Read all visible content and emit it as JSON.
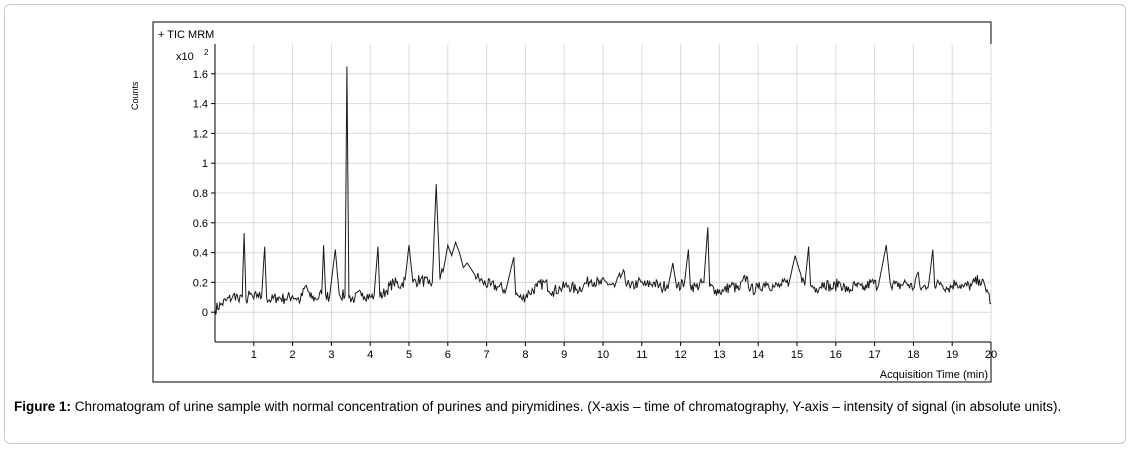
{
  "chart_data": {
    "type": "line",
    "title": "+ TIC MRM",
    "y_multiplier": "x10",
    "y_exponent": "2",
    "ylabel": "Counts",
    "xlabel": "Acquisition Time (min)",
    "xlim": [
      0,
      20
    ],
    "ylim": [
      -0.2,
      1.8
    ],
    "x_ticks": [
      1,
      2,
      3,
      4,
      5,
      6,
      7,
      8,
      9,
      10,
      11,
      12,
      13,
      14,
      15,
      16,
      17,
      18,
      19,
      20
    ],
    "x_tick_labels": [
      "1",
      "2",
      "3",
      "4",
      "5",
      "6",
      "7",
      "8",
      "9",
      "10",
      "11",
      "12",
      "13",
      "14",
      "15",
      "16",
      "17",
      "18",
      "19",
      "20"
    ],
    "y_ticks": [
      0,
      0.2,
      0.4,
      0.6,
      0.8,
      1,
      1.2,
      1.4,
      1.6
    ],
    "y_tick_labels": [
      "0",
      "0.2",
      "0.4",
      "0.6",
      "0.8",
      "1",
      "1.2",
      "1.4",
      "1.6"
    ],
    "grid": true,
    "series": [
      {
        "points": [
          [
            0.0,
            0.02
          ],
          [
            0.15,
            0.05
          ],
          [
            0.3,
            0.08
          ],
          [
            0.45,
            0.1
          ],
          [
            0.55,
            0.12
          ],
          [
            0.62,
            0.07
          ],
          [
            0.7,
            0.1
          ],
          [
            0.75,
            0.53
          ],
          [
            0.8,
            0.08
          ],
          [
            0.9,
            0.12
          ],
          [
            1.0,
            0.09
          ],
          [
            1.1,
            0.12
          ],
          [
            1.2,
            0.1
          ],
          [
            1.28,
            0.44
          ],
          [
            1.33,
            0.1
          ],
          [
            1.45,
            0.08
          ],
          [
            1.6,
            0.1
          ],
          [
            1.8,
            0.09
          ],
          [
            2.0,
            0.11
          ],
          [
            2.2,
            0.08
          ],
          [
            2.35,
            0.18
          ],
          [
            2.45,
            0.1
          ],
          [
            2.6,
            0.09
          ],
          [
            2.75,
            0.12
          ],
          [
            2.8,
            0.45
          ],
          [
            2.85,
            0.12
          ],
          [
            2.95,
            0.1
          ],
          [
            3.1,
            0.42
          ],
          [
            3.2,
            0.12
          ],
          [
            3.35,
            0.11
          ],
          [
            3.4,
            1.65
          ],
          [
            3.45,
            0.1
          ],
          [
            3.6,
            0.09
          ],
          [
            3.8,
            0.13
          ],
          [
            4.0,
            0.1
          ],
          [
            4.1,
            0.11
          ],
          [
            4.2,
            0.44
          ],
          [
            4.25,
            0.1
          ],
          [
            4.4,
            0.14
          ],
          [
            4.6,
            0.2
          ],
          [
            4.8,
            0.18
          ],
          [
            4.9,
            0.22
          ],
          [
            5.0,
            0.45
          ],
          [
            5.1,
            0.2
          ],
          [
            5.3,
            0.22
          ],
          [
            5.5,
            0.19
          ],
          [
            5.6,
            0.2
          ],
          [
            5.7,
            0.86
          ],
          [
            5.8,
            0.22
          ],
          [
            5.9,
            0.3
          ],
          [
            6.0,
            0.45
          ],
          [
            6.1,
            0.38
          ],
          [
            6.2,
            0.47
          ],
          [
            6.3,
            0.4
          ],
          [
            6.4,
            0.3
          ],
          [
            6.5,
            0.33
          ],
          [
            6.7,
            0.25
          ],
          [
            6.9,
            0.2
          ],
          [
            7.1,
            0.18
          ],
          [
            7.3,
            0.17
          ],
          [
            7.5,
            0.15
          ],
          [
            7.7,
            0.37
          ],
          [
            7.75,
            0.12
          ],
          [
            7.9,
            0.09
          ],
          [
            8.1,
            0.13
          ],
          [
            8.3,
            0.17
          ],
          [
            8.5,
            0.2
          ],
          [
            8.7,
            0.14
          ],
          [
            8.9,
            0.16
          ],
          [
            9.1,
            0.18
          ],
          [
            9.3,
            0.15
          ],
          [
            9.5,
            0.18
          ],
          [
            9.7,
            0.22
          ],
          [
            9.9,
            0.19
          ],
          [
            10.1,
            0.2
          ],
          [
            10.3,
            0.17
          ],
          [
            10.5,
            0.26
          ],
          [
            10.7,
            0.16
          ],
          [
            10.9,
            0.2
          ],
          [
            11.1,
            0.18
          ],
          [
            11.3,
            0.2
          ],
          [
            11.5,
            0.16
          ],
          [
            11.7,
            0.2
          ],
          [
            11.8,
            0.33
          ],
          [
            11.9,
            0.16
          ],
          [
            12.1,
            0.2
          ],
          [
            12.2,
            0.42
          ],
          [
            12.25,
            0.18
          ],
          [
            12.4,
            0.17
          ],
          [
            12.6,
            0.2
          ],
          [
            12.7,
            0.57
          ],
          [
            12.75,
            0.17
          ],
          [
            12.9,
            0.15
          ],
          [
            13.1,
            0.14
          ],
          [
            13.3,
            0.18
          ],
          [
            13.5,
            0.15
          ],
          [
            13.7,
            0.24
          ],
          [
            13.8,
            0.15
          ],
          [
            14.0,
            0.16
          ],
          [
            14.2,
            0.2
          ],
          [
            14.4,
            0.17
          ],
          [
            14.6,
            0.18
          ],
          [
            14.8,
            0.2
          ],
          [
            14.95,
            0.38
          ],
          [
            15.1,
            0.25
          ],
          [
            15.2,
            0.18
          ],
          [
            15.3,
            0.44
          ],
          [
            15.35,
            0.18
          ],
          [
            15.5,
            0.16
          ],
          [
            15.7,
            0.2
          ],
          [
            15.9,
            0.16
          ],
          [
            16.1,
            0.2
          ],
          [
            16.3,
            0.14
          ],
          [
            16.5,
            0.18
          ],
          [
            16.7,
            0.15
          ],
          [
            16.9,
            0.2
          ],
          [
            17.1,
            0.18
          ],
          [
            17.3,
            0.45
          ],
          [
            17.4,
            0.2
          ],
          [
            17.6,
            0.17
          ],
          [
            17.8,
            0.2
          ],
          [
            18.0,
            0.16
          ],
          [
            18.1,
            0.26
          ],
          [
            18.2,
            0.15
          ],
          [
            18.4,
            0.2
          ],
          [
            18.5,
            0.42
          ],
          [
            18.55,
            0.17
          ],
          [
            18.7,
            0.2
          ],
          [
            18.9,
            0.16
          ],
          [
            19.1,
            0.2
          ],
          [
            19.3,
            0.17
          ],
          [
            19.5,
            0.18
          ],
          [
            19.7,
            0.22
          ],
          [
            19.9,
            0.15
          ],
          [
            20.0,
            0.06
          ]
        ]
      }
    ]
  },
  "caption": {
    "label": "Figure 1:",
    "text": " Chromatogram of urine sample with normal concentration of purines and pirymidines. (X-axis – time of chromatography, Y-axis – intensity of signal (in absolute units)."
  }
}
